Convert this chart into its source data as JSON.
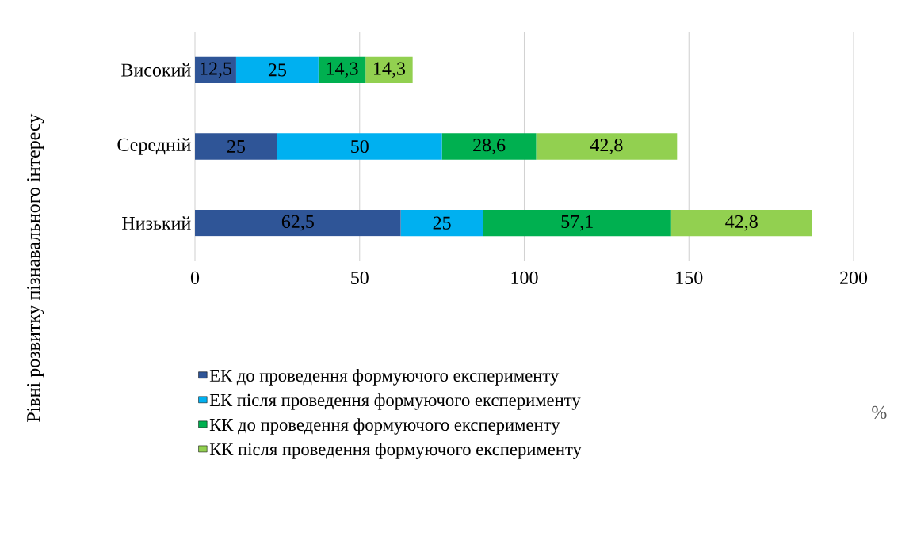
{
  "chart_data": {
    "type": "bar",
    "orientation": "horizontal",
    "stacked": true,
    "categories": [
      "Високий",
      "Середній",
      "Низький"
    ],
    "series": [
      {
        "name": "ЕК до проведення формуючого експерименту",
        "color": "#2f5597",
        "values": [
          12.5,
          25,
          62.5
        ],
        "value_labels": [
          "12,5",
          "25",
          "62,5"
        ]
      },
      {
        "name": "ЕК після проведення формуючого експерименту",
        "color": "#00b0f0",
        "values": [
          25,
          50,
          25
        ],
        "value_labels": [
          "25",
          "50",
          "25"
        ]
      },
      {
        "name": "КК до проведення формуючого експерименту",
        "color": "#00b050",
        "values": [
          14.3,
          28.6,
          57.1
        ],
        "value_labels": [
          "14,3",
          "28,6",
          "57,1"
        ]
      },
      {
        "name": "КК після проведення формуючого експерименту",
        "color": "#92d050",
        "values": [
          14.3,
          42.8,
          42.8
        ],
        "value_labels": [
          "14,3",
          "42,8",
          "42,8"
        ]
      }
    ],
    "xlim": [
      0,
      200
    ],
    "xticks": [
      0,
      50,
      100,
      150,
      200
    ],
    "annotations": [
      "%"
    ],
    "ylabel": "Рівні розвитку пізнавального інтересу",
    "grid": "x",
    "legend": "bottom"
  }
}
